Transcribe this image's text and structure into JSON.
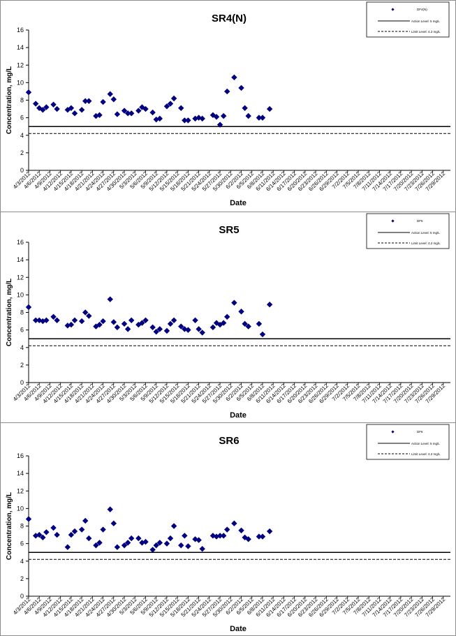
{
  "colors": {
    "marker": "#000080",
    "action_line": "#000000",
    "limit_line": "#000000"
  },
  "x_tick_labels": [
    "4/3/2012",
    "4/6/2012",
    "4/9/2012",
    "4/12/2012",
    "4/15/2012",
    "4/18/2012",
    "4/21/2012",
    "4/24/2012",
    "4/27/2012",
    "4/30/2012",
    "5/3/2012",
    "5/6/2012",
    "5/9/2012",
    "5/12/2012",
    "5/15/2012",
    "5/18/2012",
    "5/21/2012",
    "5/24/2012",
    "5/27/2012",
    "5/30/2012",
    "6/2/2012",
    "6/5/2012",
    "6/8/2012",
    "6/11/2012",
    "6/14/2012",
    "6/17/2012",
    "6/20/2012",
    "6/23/2012",
    "6/26/2012",
    "6/29/2012",
    "7/2/2012",
    "7/5/2012",
    "7/8/2012",
    "7/11/2012",
    "7/14/2012",
    "7/17/2012",
    "7/20/2012",
    "7/23/2012",
    "7/26/2012",
    "7/29/2012"
  ],
  "y_ticks": [
    "0",
    "2",
    "4",
    "6",
    "8",
    "10",
    "12",
    "14",
    "16"
  ],
  "chart_data": [
    {
      "type": "scatter",
      "title": "SR4(N)",
      "xlabel": "Date",
      "ylabel": "Concentration, mg/L",
      "ylim": [
        0,
        16
      ],
      "xlim": [
        "4/3/2012",
        "7/31/2012"
      ],
      "legend_position": "top-right",
      "legend": {
        "series": "DF4(N)",
        "action": "Action Level: 5 mg/L",
        "limit": "Limit Level: 4.2 mg/L"
      },
      "action_level": 5,
      "limit_level": 4.2,
      "points": [
        [
          "4/3/2012",
          8.9
        ],
        [
          "4/5/2012",
          7.6
        ],
        [
          "4/6/2012",
          7.1
        ],
        [
          "4/7/2012",
          6.9
        ],
        [
          "4/8/2012",
          7.2
        ],
        [
          "4/10/2012",
          7.5
        ],
        [
          "4/11/2012",
          7.0
        ],
        [
          "4/14/2012",
          6.9
        ],
        [
          "4/15/2012",
          7.1
        ],
        [
          "4/16/2012",
          6.5
        ],
        [
          "4/18/2012",
          6.9
        ],
        [
          "4/19/2012",
          7.9
        ],
        [
          "4/20/2012",
          7.9
        ],
        [
          "4/22/2012",
          6.2
        ],
        [
          "4/23/2012",
          6.3
        ],
        [
          "4/24/2012",
          7.8
        ],
        [
          "4/26/2012",
          8.7
        ],
        [
          "4/27/2012",
          8.1
        ],
        [
          "4/28/2012",
          6.4
        ],
        [
          "4/30/2012",
          6.8
        ],
        [
          "5/1/2012",
          6.5
        ],
        [
          "5/2/2012",
          6.5
        ],
        [
          "5/4/2012",
          6.8
        ],
        [
          "5/5/2012",
          7.2
        ],
        [
          "5/6/2012",
          7.0
        ],
        [
          "5/8/2012",
          6.6
        ],
        [
          "5/9/2012",
          5.8
        ],
        [
          "5/10/2012",
          5.9
        ],
        [
          "5/12/2012",
          7.3
        ],
        [
          "5/13/2012",
          7.6
        ],
        [
          "5/14/2012",
          8.2
        ],
        [
          "5/16/2012",
          7.1
        ],
        [
          "5/17/2012",
          5.7
        ],
        [
          "5/18/2012",
          5.7
        ],
        [
          "5/20/2012",
          5.9
        ],
        [
          "5/21/2012",
          6.0
        ],
        [
          "5/22/2012",
          5.9
        ],
        [
          "5/25/2012",
          6.3
        ],
        [
          "5/26/2012",
          6.1
        ],
        [
          "5/27/2012",
          5.2
        ],
        [
          "5/28/2012",
          6.2
        ],
        [
          "5/29/2012",
          9.0
        ],
        [
          "5/31/2012",
          10.6
        ],
        [
          "6/2/2012",
          9.4
        ],
        [
          "6/3/2012",
          7.1
        ],
        [
          "6/4/2012",
          6.2
        ],
        [
          "6/7/2012",
          6.0
        ],
        [
          "6/8/2012",
          6.0
        ],
        [
          "6/10/2012",
          7.0
        ]
      ]
    },
    {
      "type": "scatter",
      "title": "SR5",
      "xlabel": "Date",
      "ylabel": "Concentration, mg/L",
      "ylim": [
        0,
        16
      ],
      "xlim": [
        "4/3/2012",
        "7/31/2012"
      ],
      "legend_position": "top-right",
      "legend": {
        "series": "DF5",
        "action": "Action Level: 5 mg/L",
        "limit": "Limit Level: 4.2 mg/L"
      },
      "action_level": 5,
      "limit_level": 4.2,
      "points": [
        [
          "4/3/2012",
          8.6
        ],
        [
          "4/5/2012",
          7.1
        ],
        [
          "4/6/2012",
          7.1
        ],
        [
          "4/7/2012",
          7.0
        ],
        [
          "4/8/2012",
          7.1
        ],
        [
          "4/10/2012",
          7.5
        ],
        [
          "4/11/2012",
          7.1
        ],
        [
          "4/14/2012",
          6.5
        ],
        [
          "4/15/2012",
          6.6
        ],
        [
          "4/16/2012",
          7.1
        ],
        [
          "4/18/2012",
          7.0
        ],
        [
          "4/19/2012",
          8.0
        ],
        [
          "4/20/2012",
          7.6
        ],
        [
          "4/22/2012",
          6.4
        ],
        [
          "4/23/2012",
          6.6
        ],
        [
          "4/24/2012",
          7.0
        ],
        [
          "4/26/2012",
          9.5
        ],
        [
          "4/27/2012",
          6.9
        ],
        [
          "4/28/2012",
          6.3
        ],
        [
          "4/30/2012",
          6.7
        ],
        [
          "5/1/2012",
          6.1
        ],
        [
          "5/2/2012",
          7.1
        ],
        [
          "5/4/2012",
          6.6
        ],
        [
          "5/5/2012",
          6.8
        ],
        [
          "5/6/2012",
          7.1
        ],
        [
          "5/8/2012",
          6.3
        ],
        [
          "5/9/2012",
          5.8
        ],
        [
          "5/10/2012",
          6.1
        ],
        [
          "5/12/2012",
          5.9
        ],
        [
          "5/13/2012",
          6.7
        ],
        [
          "5/14/2012",
          7.1
        ],
        [
          "5/16/2012",
          6.4
        ],
        [
          "5/17/2012",
          6.1
        ],
        [
          "5/18/2012",
          6.0
        ],
        [
          "5/20/2012",
          7.1
        ],
        [
          "5/21/2012",
          6.1
        ],
        [
          "5/22/2012",
          5.7
        ],
        [
          "5/25/2012",
          6.3
        ],
        [
          "5/26/2012",
          6.8
        ],
        [
          "5/27/2012",
          6.6
        ],
        [
          "5/28/2012",
          6.8
        ],
        [
          "5/29/2012",
          7.5
        ],
        [
          "5/31/2012",
          9.1
        ],
        [
          "6/2/2012",
          8.1
        ],
        [
          "6/3/2012",
          6.7
        ],
        [
          "6/4/2012",
          6.4
        ],
        [
          "6/7/2012",
          6.7
        ],
        [
          "6/8/2012",
          5.5
        ],
        [
          "6/10/2012",
          8.9
        ]
      ]
    },
    {
      "type": "scatter",
      "title": "SR6",
      "xlabel": "Date",
      "ylabel": "Concentration, mg/L",
      "ylim": [
        0,
        16
      ],
      "xlim": [
        "4/3/2012",
        "7/31/2012"
      ],
      "legend_position": "top-right",
      "legend": {
        "series": "DF6",
        "action": "Action Level: 5 mg/L",
        "limit": "Limit Level: 4.2 mg/L"
      },
      "action_level": 5,
      "limit_level": 4.2,
      "points": [
        [
          "4/3/2012",
          8.8
        ],
        [
          "4/5/2012",
          6.9
        ],
        [
          "4/6/2012",
          7.0
        ],
        [
          "4/7/2012",
          6.7
        ],
        [
          "4/8/2012",
          7.3
        ],
        [
          "4/10/2012",
          7.8
        ],
        [
          "4/11/2012",
          7.0
        ],
        [
          "4/14/2012",
          5.6
        ],
        [
          "4/15/2012",
          7.0
        ],
        [
          "4/16/2012",
          7.4
        ],
        [
          "4/18/2012",
          7.6
        ],
        [
          "4/19/2012",
          8.6
        ],
        [
          "4/20/2012",
          6.6
        ],
        [
          "4/22/2012",
          5.8
        ],
        [
          "4/23/2012",
          6.1
        ],
        [
          "4/24/2012",
          7.6
        ],
        [
          "4/26/2012",
          9.9
        ],
        [
          "4/27/2012",
          8.3
        ],
        [
          "4/28/2012",
          5.6
        ],
        [
          "4/30/2012",
          5.8
        ],
        [
          "5/1/2012",
          6.1
        ],
        [
          "5/2/2012",
          6.6
        ],
        [
          "5/4/2012",
          6.6
        ],
        [
          "5/5/2012",
          6.1
        ],
        [
          "5/6/2012",
          6.2
        ],
        [
          "5/8/2012",
          5.3
        ],
        [
          "5/9/2012",
          5.8
        ],
        [
          "5/10/2012",
          6.1
        ],
        [
          "5/12/2012",
          6.0
        ],
        [
          "5/13/2012",
          6.6
        ],
        [
          "5/14/2012",
          8.0
        ],
        [
          "5/16/2012",
          5.8
        ],
        [
          "5/17/2012",
          6.9
        ],
        [
          "5/18/2012",
          5.7
        ],
        [
          "5/20/2012",
          6.5
        ],
        [
          "5/21/2012",
          6.4
        ],
        [
          "5/22/2012",
          5.4
        ],
        [
          "5/25/2012",
          6.9
        ],
        [
          "5/26/2012",
          6.8
        ],
        [
          "5/27/2012",
          6.9
        ],
        [
          "5/28/2012",
          6.9
        ],
        [
          "5/29/2012",
          7.6
        ],
        [
          "5/31/2012",
          8.3
        ],
        [
          "6/2/2012",
          7.5
        ],
        [
          "6/3/2012",
          6.7
        ],
        [
          "6/4/2012",
          6.5
        ],
        [
          "6/7/2012",
          6.8
        ],
        [
          "6/8/2012",
          6.8
        ],
        [
          "6/10/2012",
          7.4
        ]
      ]
    }
  ]
}
